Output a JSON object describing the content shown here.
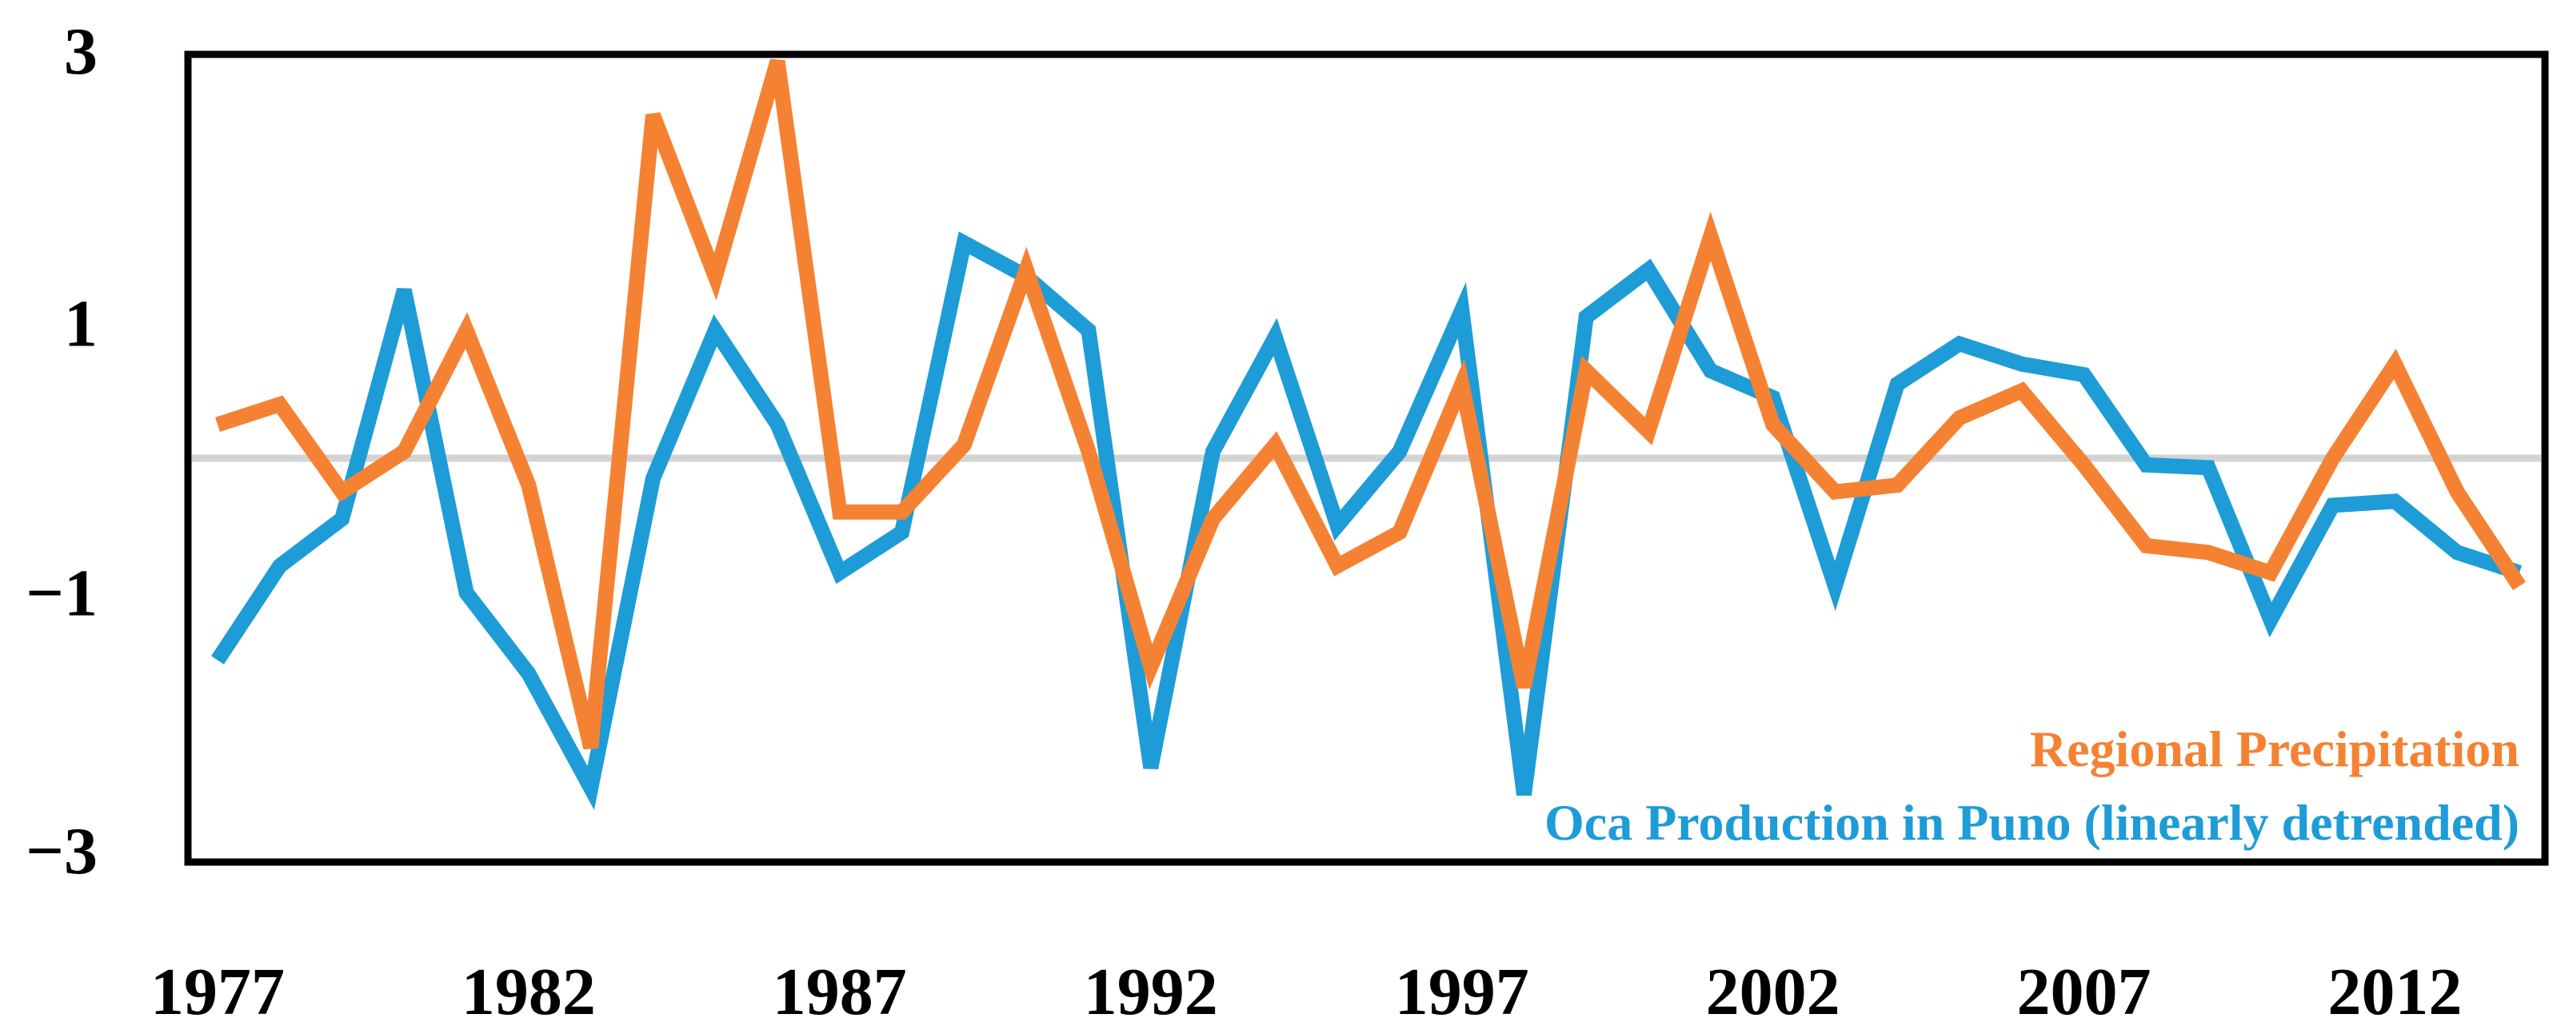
{
  "chart_data": {
    "type": "line",
    "title": "",
    "xlabel": "",
    "ylabel": "",
    "xlim": [
      1977,
      2014
    ],
    "ylim": [
      -3,
      3
    ],
    "zero_line": true,
    "legend_position": "bottom-right",
    "x_ticks": [
      1977,
      1982,
      1987,
      1992,
      1997,
      2002,
      2007,
      2012
    ],
    "x_tick_labels": [
      "1977",
      "1982",
      "1987",
      "1992",
      "1997",
      "2002",
      "2007",
      "2012"
    ],
    "y_ticks": [
      3,
      1,
      -1,
      -3
    ],
    "y_tick_labels": [
      "3",
      "1",
      "−1",
      "−3"
    ],
    "x": [
      1977,
      1978,
      1979,
      1980,
      1981,
      1982,
      1983,
      1984,
      1985,
      1986,
      1987,
      1988,
      1989,
      1990,
      1991,
      1992,
      1993,
      1994,
      1995,
      1996,
      1997,
      1998,
      1999,
      2000,
      2001,
      2002,
      2003,
      2004,
      2005,
      2006,
      2007,
      2008,
      2009,
      2010,
      2011,
      2012,
      2013,
      2014
    ],
    "series": [
      {
        "name": "Regional Precipitation",
        "color": "#F58233",
        "values": [
          0.25,
          0.4,
          -0.25,
          0.05,
          0.95,
          -0.2,
          -2.15,
          2.55,
          1.35,
          2.95,
          -0.4,
          -0.4,
          0.1,
          1.4,
          0.05,
          -1.55,
          -0.45,
          0.1,
          -0.8,
          -0.55,
          0.55,
          -1.7,
          0.65,
          0.2,
          1.65,
          0.25,
          -0.25,
          -0.2,
          0.3,
          0.5,
          -0.05,
          -0.65,
          -0.7,
          -0.85,
          0.0,
          0.7,
          -0.25,
          -0.95
        ]
      },
      {
        "name": "Oca Production in Puno (linearly detrended)",
        "color": "#1E9CD7",
        "values": [
          -1.5,
          -0.8,
          -0.45,
          1.25,
          -1.0,
          -1.6,
          -2.45,
          -0.15,
          0.95,
          0.25,
          -0.85,
          -0.55,
          1.6,
          1.35,
          0.95,
          -2.3,
          0.05,
          0.9,
          -0.5,
          0.05,
          1.1,
          -2.5,
          1.05,
          1.4,
          0.65,
          0.45,
          -0.95,
          0.55,
          0.85,
          0.7,
          0.62,
          -0.05,
          -0.07,
          -1.2,
          -0.35,
          -0.32,
          -0.7,
          -0.85
        ]
      }
    ]
  }
}
